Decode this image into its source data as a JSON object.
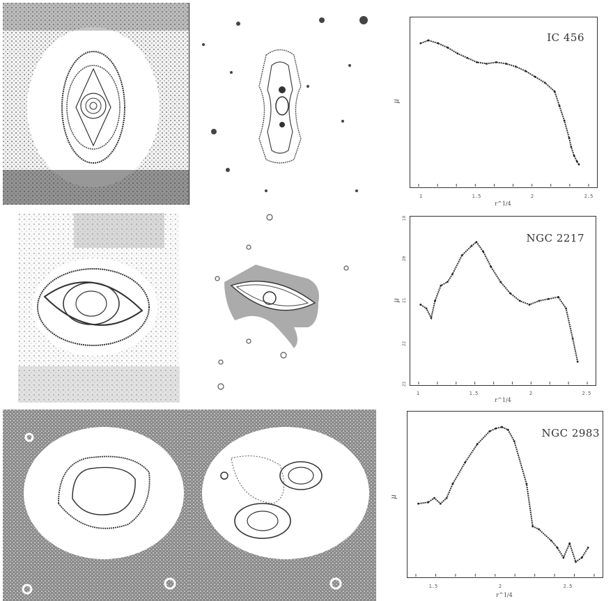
{
  "figure": {
    "rows": [
      {
        "label": "IC 456",
        "xlabel": "r^1/4",
        "ylabel": "μ",
        "xticks": [
          "1",
          "1.5",
          "2",
          "2.5"
        ],
        "yticks": [
          "",
          "",
          "",
          "",
          ""
        ]
      },
      {
        "label": "NGC 2217",
        "xlabel": "r^1/4",
        "ylabel": "μ",
        "xticks": [
          "1",
          "1.5",
          "2",
          "2.5"
        ],
        "yticks": [
          "19",
          "20",
          "21",
          "22",
          "23"
        ]
      },
      {
        "label": "NGC 2983",
        "xlabel": "r^1/4",
        "ylabel": "μ",
        "xticks": [
          "1.5",
          "2",
          "2.5"
        ],
        "yticks": [
          "",
          "",
          "",
          "",
          ""
        ]
      }
    ]
  },
  "chart_data": [
    {
      "type": "line",
      "title": "IC 456",
      "xlabel": "r^1/4",
      "ylabel": "μ",
      "xlim": [
        0.95,
        2.7
      ],
      "series": [
        {
          "name": "",
          "x": [
            0.97,
            1.05,
            1.15,
            1.25,
            1.35,
            1.45,
            1.55,
            1.65,
            1.75,
            1.85,
            1.95,
            2.05,
            2.15,
            2.25,
            2.35,
            2.4,
            2.45,
            2.5,
            2.52,
            2.55,
            2.58,
            2.6
          ],
          "y": [
            0.93,
            0.95,
            0.93,
            0.9,
            0.86,
            0.83,
            0.8,
            0.79,
            0.8,
            0.79,
            0.77,
            0.74,
            0.7,
            0.66,
            0.6,
            0.5,
            0.4,
            0.28,
            0.22,
            0.16,
            0.12,
            0.1
          ]
        }
      ]
    },
    {
      "type": "line",
      "title": "NGC 2217",
      "xlabel": "r^1/4",
      "ylabel": "μ",
      "xlim": [
        0.95,
        2.7
      ],
      "ylim": [
        23,
        19
      ],
      "series": [
        {
          "name": "",
          "x": [
            0.97,
            1.03,
            1.08,
            1.12,
            1.18,
            1.25,
            1.3,
            1.4,
            1.5,
            1.55,
            1.62,
            1.7,
            1.8,
            1.9,
            2.0,
            2.1,
            2.2,
            2.3,
            2.4,
            2.48,
            2.55,
            2.6
          ],
          "y": [
            21.1,
            21.2,
            21.45,
            21.0,
            20.6,
            20.5,
            20.3,
            19.8,
            19.55,
            19.45,
            19.7,
            20.1,
            20.5,
            20.8,
            21.0,
            21.1,
            21.0,
            20.95,
            20.9,
            21.2,
            22.0,
            22.6
          ]
        }
      ]
    },
    {
      "type": "line",
      "title": "NGC 2983",
      "xlabel": "r^1/4",
      "ylabel": "μ",
      "xlim": [
        1.3,
        2.75
      ],
      "series": [
        {
          "name": "",
          "x": [
            1.32,
            1.4,
            1.45,
            1.5,
            1.55,
            1.6,
            1.7,
            1.8,
            1.9,
            1.95,
            2.0,
            2.05,
            2.1,
            2.2,
            2.25,
            2.3,
            2.4,
            2.45,
            2.5,
            2.55,
            2.6,
            2.65,
            2.7
          ],
          "y": [
            0.46,
            0.47,
            0.5,
            0.46,
            0.5,
            0.6,
            0.75,
            0.88,
            0.97,
            0.99,
            1.0,
            0.98,
            0.9,
            0.6,
            0.3,
            0.28,
            0.2,
            0.15,
            0.08,
            0.18,
            0.05,
            0.08,
            0.15
          ]
        }
      ]
    }
  ]
}
